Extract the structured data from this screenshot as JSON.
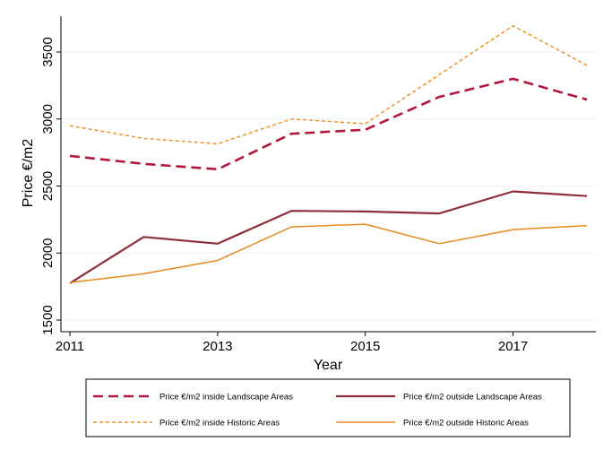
{
  "chart_data": {
    "type": "line",
    "xlabel": "Year",
    "ylabel": "Price €/m2",
    "x": [
      2011,
      2012,
      2013,
      2014,
      2015,
      2016,
      2017,
      2018
    ],
    "xticks": [
      2011,
      2013,
      2015,
      2017
    ],
    "xlim": [
      2011,
      2018
    ],
    "yticks": [
      1500,
      2000,
      2500,
      3000,
      3500
    ],
    "ylim": [
      1500,
      3750
    ],
    "grid": true,
    "legend_position": "bottom",
    "series": [
      {
        "name": "Price €/m2 inside Landscape Areas",
        "color": "#b0173d",
        "style": "dashed-thick",
        "values": [
          2725,
          2665,
          2625,
          2890,
          2920,
          3165,
          3300,
          3145
        ]
      },
      {
        "name": "Price €/m2 outside Landscape Areas",
        "color": "#8c2f3a",
        "style": "solid-thick",
        "values": [
          1775,
          2120,
          2070,
          2315,
          2310,
          2295,
          2460,
          2425
        ]
      },
      {
        "name": "Price €/m2 inside Historic Areas",
        "color": "#f08a1a",
        "style": "dashed-thin",
        "values": [
          2950,
          2855,
          2815,
          3000,
          2965,
          3330,
          3695,
          3400
        ]
      },
      {
        "name": "Price €/m2 outside Historic Areas",
        "color": "#e8891f",
        "style": "solid-thin",
        "values": [
          1780,
          1845,
          1945,
          2195,
          2215,
          2070,
          2175,
          2205
        ]
      }
    ]
  }
}
